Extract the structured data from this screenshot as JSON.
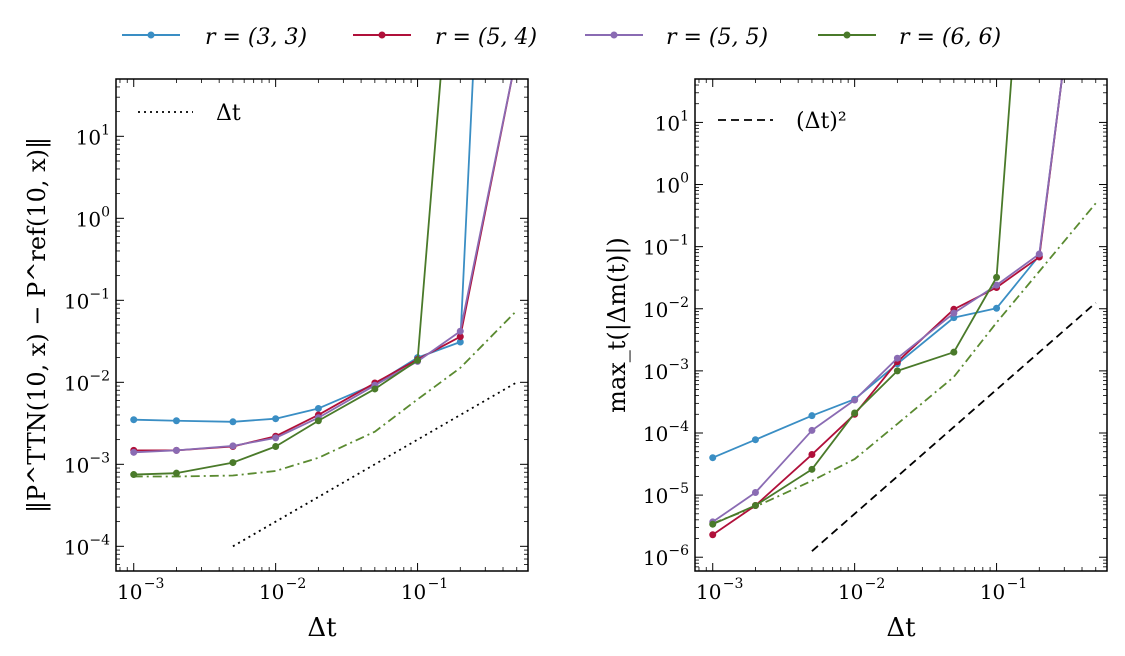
{
  "legend": [
    {
      "label": "r = (3, 3)",
      "color": "#3a8ec4"
    },
    {
      "label": "r = (5, 4)",
      "color": "#b0103a"
    },
    {
      "label": "r = (5, 5)",
      "color": "#8a6bb3"
    },
    {
      "label": "r = (6, 6)",
      "color": "#4a7a2a"
    }
  ],
  "chart_data": [
    {
      "type": "line",
      "xlabel": "Δt",
      "ylabel": "‖P^TTN(10, x) − P^ref(10, x)‖",
      "xscale": "log",
      "yscale": "log",
      "xlim": [
        0.00075,
        0.6
      ],
      "ylim": [
        5e-05,
        50
      ],
      "xticks": [
        {
          "v": 0.001,
          "m": "10",
          "e": "−3"
        },
        {
          "v": 0.01,
          "m": "10",
          "e": "−2"
        },
        {
          "v": 0.1,
          "m": "10",
          "e": "−1"
        }
      ],
      "yticks": [
        {
          "v": 0.0001,
          "m": "10",
          "e": "−4"
        },
        {
          "v": 0.001,
          "m": "10",
          "e": "−3"
        },
        {
          "v": 0.01,
          "m": "10",
          "e": "−2"
        },
        {
          "v": 0.1,
          "m": "10",
          "e": "−1"
        },
        {
          "v": 1,
          "m": "10",
          "e": "0"
        },
        {
          "v": 10,
          "m": "10",
          "e": "1"
        }
      ],
      "series": [
        {
          "name": "r = (3, 3)",
          "color": "#3a8ec4",
          "x": [
            0.001,
            0.002,
            0.005,
            0.01,
            0.02,
            0.05,
            0.1,
            0.2,
            0.25
          ],
          "y": [
            0.0035,
            0.0034,
            0.0033,
            0.0036,
            0.0048,
            0.0095,
            0.02,
            0.031,
            100
          ]
        },
        {
          "name": "r = (5, 4)",
          "color": "#b0103a",
          "x": [
            0.001,
            0.002,
            0.005,
            0.01,
            0.02,
            0.05,
            0.1,
            0.2,
            0.5
          ],
          "y": [
            0.00148,
            0.00148,
            0.00165,
            0.0022,
            0.004,
            0.0098,
            0.019,
            0.036,
            100
          ]
        },
        {
          "name": "r = (5, 5)",
          "color": "#8a6bb3",
          "x": [
            0.001,
            0.002,
            0.005,
            0.01,
            0.02,
            0.05,
            0.1,
            0.2,
            0.5
          ],
          "y": [
            0.0014,
            0.00148,
            0.00168,
            0.0021,
            0.0037,
            0.0092,
            0.018,
            0.042,
            100
          ]
        },
        {
          "name": "r = (6, 6)",
          "color": "#4a7a2a",
          "x": [
            0.001,
            0.002,
            0.005,
            0.01,
            0.02,
            0.05,
            0.1,
            0.15
          ],
          "y": [
            0.00075,
            0.00078,
            0.00105,
            0.00165,
            0.0034,
            0.0083,
            0.0185,
            100
          ]
        }
      ],
      "reference_lines": [
        {
          "name": "Δt",
          "style": "dotted",
          "color": "#000000",
          "x": [
            0.005,
            0.5
          ],
          "y": [
            0.0001,
            0.01
          ]
        },
        {
          "name": "",
          "style": "dashdot",
          "color": "#5a8a30",
          "x": [
            0.001,
            0.002,
            0.005,
            0.01,
            0.02,
            0.05,
            0.1,
            0.2,
            0.5
          ],
          "y": [
            0.00071,
            0.00071,
            0.00073,
            0.00083,
            0.0012,
            0.0025,
            0.0062,
            0.015,
            0.075
          ]
        }
      ],
      "legend": {
        "label": "Δt",
        "placement": "top-left"
      }
    },
    {
      "type": "line",
      "xlabel": "Δt",
      "ylabel": "max_t(|Δm(t)|)",
      "xscale": "log",
      "yscale": "log",
      "xlim": [
        0.00075,
        0.6
      ],
      "ylim": [
        6e-07,
        50
      ],
      "xticks": [
        {
          "v": 0.001,
          "m": "10",
          "e": "−3"
        },
        {
          "v": 0.01,
          "m": "10",
          "e": "−2"
        },
        {
          "v": 0.1,
          "m": "10",
          "e": "−1"
        }
      ],
      "yticks": [
        {
          "v": 1e-06,
          "m": "10",
          "e": "−6"
        },
        {
          "v": 1e-05,
          "m": "10",
          "e": "−5"
        },
        {
          "v": 0.0001,
          "m": "10",
          "e": "−4"
        },
        {
          "v": 0.001,
          "m": "10",
          "e": "−3"
        },
        {
          "v": 0.01,
          "m": "10",
          "e": "−2"
        },
        {
          "v": 0.1,
          "m": "10",
          "e": "−1"
        },
        {
          "v": 1,
          "m": "10",
          "e": "0"
        },
        {
          "v": 10,
          "m": "10",
          "e": "1"
        }
      ],
      "series": [
        {
          "name": "r = (3, 3)",
          "color": "#3a8ec4",
          "x": [
            0.001,
            0.002,
            0.005,
            0.01,
            0.02,
            0.05,
            0.1,
            0.2,
            0.3
          ],
          "y": [
            4e-05,
            7.8e-05,
            0.00019,
            0.00035,
            0.0013,
            0.0072,
            0.0102,
            0.072,
            100
          ]
        },
        {
          "name": "r = (5, 4)",
          "color": "#b0103a",
          "x": [
            0.001,
            0.002,
            0.005,
            0.01,
            0.02,
            0.05,
            0.1,
            0.2,
            0.3
          ],
          "y": [
            2.3e-06,
            6.8e-06,
            4.5e-05,
            0.0002,
            0.0014,
            0.0098,
            0.022,
            0.068,
            100
          ]
        },
        {
          "name": "r = (5, 5)",
          "color": "#8a6bb3",
          "x": [
            0.001,
            0.002,
            0.005,
            0.01,
            0.02,
            0.05,
            0.1,
            0.2,
            0.3
          ],
          "y": [
            3.7e-06,
            1.1e-05,
            0.00011,
            0.00034,
            0.0016,
            0.0085,
            0.024,
            0.076,
            100
          ]
        },
        {
          "name": "r = (6, 6)",
          "color": "#4a7a2a",
          "x": [
            0.001,
            0.002,
            0.005,
            0.01,
            0.02,
            0.05,
            0.1,
            0.13
          ],
          "y": [
            3.4e-06,
            6.8e-06,
            2.6e-05,
            0.00021,
            0.001,
            0.002,
            0.032,
            100
          ]
        }
      ],
      "reference_lines": [
        {
          "name": "(Δt)²",
          "style": "dashed",
          "color": "#000000",
          "x": [
            0.005,
            0.5
          ],
          "y": [
            1.25e-06,
            0.0125
          ]
        },
        {
          "name": "",
          "style": "dashdot",
          "color": "#5a8a30",
          "x": [
            0.001,
            0.002,
            0.005,
            0.01,
            0.02,
            0.05,
            0.1,
            0.2,
            0.5
          ],
          "y": [
            3.5e-06,
            6.5e-06,
            1.7e-05,
            3.8e-05,
            0.00014,
            0.0008,
            0.006,
            0.04,
            0.5
          ]
        }
      ],
      "legend": {
        "label": "(Δt)²",
        "placement": "top-left"
      }
    }
  ]
}
